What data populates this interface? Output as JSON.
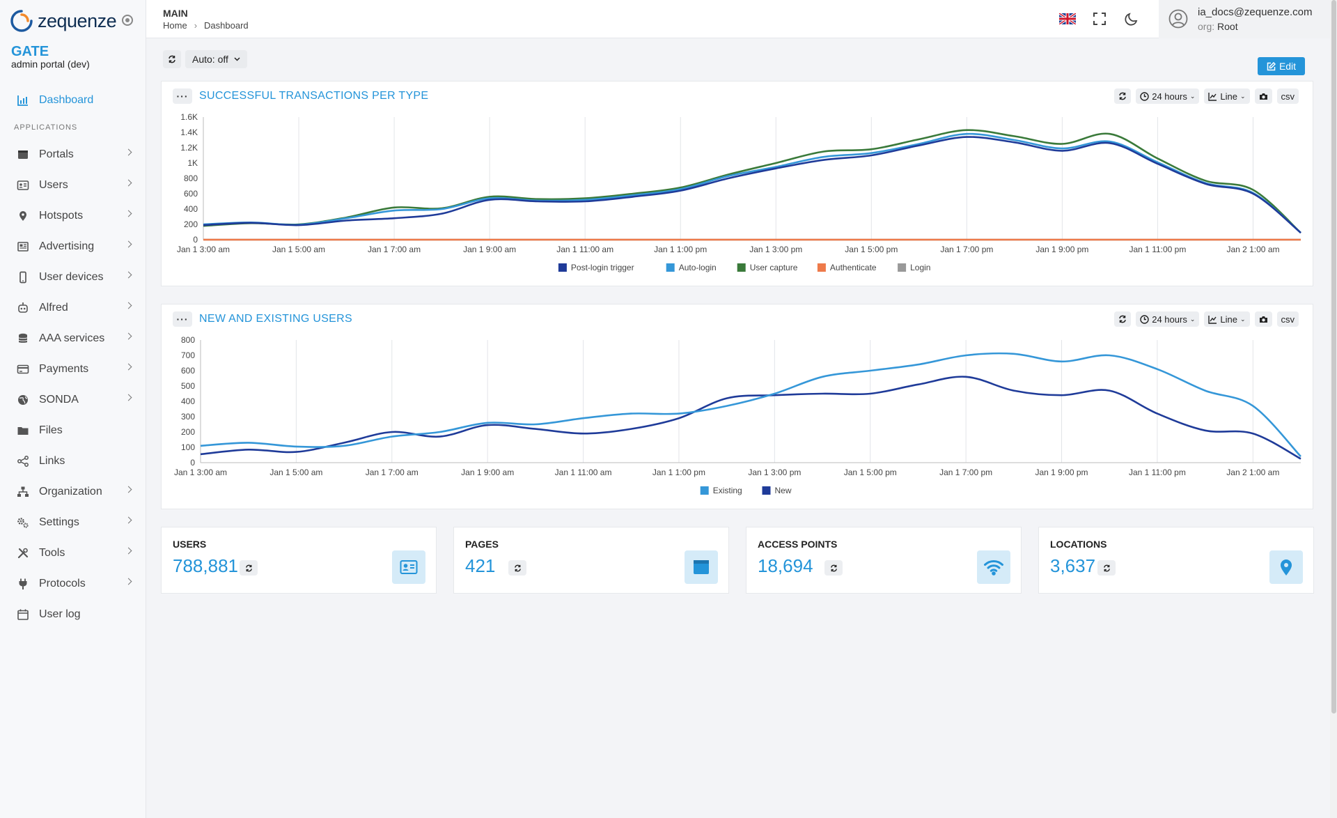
{
  "app": {
    "logo_text": "zequenze",
    "brand_title": "GATE",
    "brand_subtitle": "admin portal (dev)"
  },
  "sidebar": {
    "dashboard": "Dashboard",
    "section_label": "APPLICATIONS",
    "items": [
      {
        "label": "Portals",
        "icon": "portal-icon"
      },
      {
        "label": "Users",
        "icon": "id-card-icon"
      },
      {
        "label": "Hotspots",
        "icon": "map-pin-icon"
      },
      {
        "label": "Advertising",
        "icon": "newspaper-icon"
      },
      {
        "label": "User devices",
        "icon": "mobile-icon"
      },
      {
        "label": "Alfred",
        "icon": "robot-icon"
      },
      {
        "label": "AAA services",
        "icon": "database-icon"
      },
      {
        "label": "Payments",
        "icon": "credit-card-icon"
      },
      {
        "label": "SONDA",
        "icon": "globe-icon"
      },
      {
        "label": "Files",
        "icon": "folder-icon"
      },
      {
        "label": "Links",
        "icon": "share-icon"
      },
      {
        "label": "Organization",
        "icon": "sitemap-icon"
      },
      {
        "label": "Settings",
        "icon": "gears-icon"
      },
      {
        "label": "Tools",
        "icon": "tools-icon"
      },
      {
        "label": "Protocols",
        "icon": "plug-icon"
      },
      {
        "label": "User log",
        "icon": "calendar-icon"
      }
    ]
  },
  "header": {
    "section": "MAIN",
    "breadcrumb_home": "Home",
    "breadcrumb_sep": "›",
    "breadcrumb_current": "Dashboard",
    "user_email": "ia_docs@zequenze.com",
    "org_label": "org:",
    "org_value": "Root"
  },
  "toolbar": {
    "auto_label": "Auto: off",
    "edit_label": "Edit"
  },
  "panels": {
    "tools": {
      "range": "24 hours",
      "type": "Line",
      "csv": "csv"
    },
    "transactions_title": "SUCCESSFUL TRANSACTIONS PER TYPE",
    "users_title": "NEW AND EXISTING USERS"
  },
  "cards": [
    {
      "title": "USERS",
      "value": "788,881",
      "icon": "id-card-icon"
    },
    {
      "title": "PAGES",
      "value": "421",
      "icon": "page-icon"
    },
    {
      "title": "ACCESS POINTS",
      "value": "18,694",
      "icon": "wifi-icon"
    },
    {
      "title": "LOCATIONS",
      "value": "3,637",
      "icon": "map-pin-icon"
    }
  ],
  "colors": {
    "accent": "#2494d9",
    "post_login": "#1f3b99",
    "auto_login": "#3597d8",
    "user_capture": "#3a7a3a",
    "authenticate": "#ee7a4a",
    "login": "#999999"
  },
  "chart_data": [
    {
      "type": "line",
      "title": "SUCCESSFUL TRANSACTIONS PER TYPE",
      "x": [
        "Jan 1 3:00 am",
        "Jan 1 4:00 am",
        "Jan 1 5:00 am",
        "Jan 1 6:00 am",
        "Jan 1 7:00 am",
        "Jan 1 8:00 am",
        "Jan 1 9:00 am",
        "Jan 1 10:00 am",
        "Jan 1 11:00 am",
        "Jan 1 12:00 pm",
        "Jan 1 1:00 pm",
        "Jan 1 2:00 pm",
        "Jan 1 3:00 pm",
        "Jan 1 4:00 pm",
        "Jan 1 5:00 pm",
        "Jan 1 6:00 pm",
        "Jan 1 7:00 pm",
        "Jan 1 8:00 pm",
        "Jan 1 9:00 pm",
        "Jan 1 10:00 pm",
        "Jan 1 11:00 pm",
        "Jan 2 12:00 am",
        "Jan 2 1:00 am",
        "Jan 2 2:30 am"
      ],
      "x_ticks": [
        "Jan 1 3:00 am",
        "Jan 1 5:00 am",
        "Jan 1 7:00 am",
        "Jan 1 9:00 am",
        "Jan 1 11:00 am",
        "Jan 1 1:00 pm",
        "Jan 1 3:00 pm",
        "Jan 1 5:00 pm",
        "Jan 1 7:00 pm",
        "Jan 1 9:00 pm",
        "Jan 1 11:00 pm",
        "Jan 2 1:00 am"
      ],
      "y_ticks": [
        "0",
        "200",
        "400",
        "600",
        "800",
        "1K",
        "1.2K",
        "1.4K",
        "1.6K"
      ],
      "ylim": [
        0,
        1600
      ],
      "series": [
        {
          "name": "Post-login trigger",
          "color": "#1f3b99",
          "values": [
            190,
            220,
            190,
            250,
            280,
            340,
            520,
            500,
            500,
            560,
            640,
            800,
            930,
            1040,
            1100,
            1230,
            1340,
            1270,
            1160,
            1260,
            990,
            730,
            600,
            90
          ]
        },
        {
          "name": "Auto-login",
          "color": "#3597d8",
          "values": [
            200,
            225,
            195,
            280,
            380,
            400,
            540,
            510,
            520,
            580,
            660,
            830,
            950,
            1080,
            1130,
            1250,
            1380,
            1300,
            1190,
            1280,
            1010,
            740,
            610,
            90
          ]
        },
        {
          "name": "User capture",
          "color": "#3a7a3a",
          "values": [
            180,
            215,
            200,
            290,
            420,
            410,
            560,
            530,
            540,
            600,
            680,
            850,
            1000,
            1150,
            1180,
            1310,
            1430,
            1350,
            1250,
            1380,
            1060,
            770,
            650,
            90
          ]
        },
        {
          "name": "Authenticate",
          "color": "#ee7a4a",
          "values": [
            0,
            0,
            0,
            0,
            0,
            0,
            0,
            0,
            0,
            0,
            0,
            0,
            0,
            0,
            0,
            0,
            0,
            0,
            0,
            0,
            0,
            0,
            0,
            0
          ]
        },
        {
          "name": "Login",
          "color": "#999999",
          "values": [
            0,
            0,
            0,
            0,
            0,
            0,
            0,
            0,
            0,
            0,
            0,
            0,
            0,
            0,
            0,
            0,
            0,
            0,
            0,
            0,
            0,
            0,
            0,
            0
          ]
        }
      ],
      "legend": "bottom-center",
      "grid": true
    },
    {
      "type": "line",
      "title": "NEW AND EXISTING USERS",
      "x": [
        "Jan 1 3:00 am",
        "Jan 1 4:00 am",
        "Jan 1 5:00 am",
        "Jan 1 6:00 am",
        "Jan 1 7:00 am",
        "Jan 1 8:00 am",
        "Jan 1 9:00 am",
        "Jan 1 10:00 am",
        "Jan 1 11:00 am",
        "Jan 1 12:00 pm",
        "Jan 1 1:00 pm",
        "Jan 1 2:00 pm",
        "Jan 1 3:00 pm",
        "Jan 1 4:00 pm",
        "Jan 1 5:00 pm",
        "Jan 1 6:00 pm",
        "Jan 1 7:00 pm",
        "Jan 1 8:00 pm",
        "Jan 1 9:00 pm",
        "Jan 1 10:00 pm",
        "Jan 1 11:00 pm",
        "Jan 2 12:00 am",
        "Jan 2 1:00 am",
        "Jan 2 2:30 am"
      ],
      "x_ticks": [
        "Jan 1 3:00 am",
        "Jan 1 5:00 am",
        "Jan 1 7:00 am",
        "Jan 1 9:00 am",
        "Jan 1 11:00 am",
        "Jan 1 1:00 pm",
        "Jan 1 3:00 pm",
        "Jan 1 5:00 pm",
        "Jan 1 7:00 pm",
        "Jan 1 9:00 pm",
        "Jan 1 11:00 pm",
        "Jan 2 1:00 am"
      ],
      "y_ticks": [
        "0",
        "100",
        "200",
        "300",
        "400",
        "500",
        "600",
        "700",
        "800"
      ],
      "ylim": [
        0,
        800
      ],
      "series": [
        {
          "name": "Existing",
          "color": "#3597d8",
          "values": [
            110,
            130,
            105,
            110,
            170,
            200,
            260,
            250,
            290,
            320,
            320,
            370,
            450,
            560,
            600,
            640,
            700,
            710,
            660,
            700,
            610,
            470,
            370,
            40
          ]
        },
        {
          "name": "New",
          "color": "#1f3b99",
          "values": [
            55,
            85,
            70,
            130,
            200,
            170,
            245,
            220,
            190,
            220,
            290,
            420,
            440,
            450,
            450,
            510,
            560,
            470,
            440,
            470,
            320,
            210,
            190,
            25
          ]
        }
      ],
      "legend": "bottom-center",
      "grid": true
    }
  ]
}
